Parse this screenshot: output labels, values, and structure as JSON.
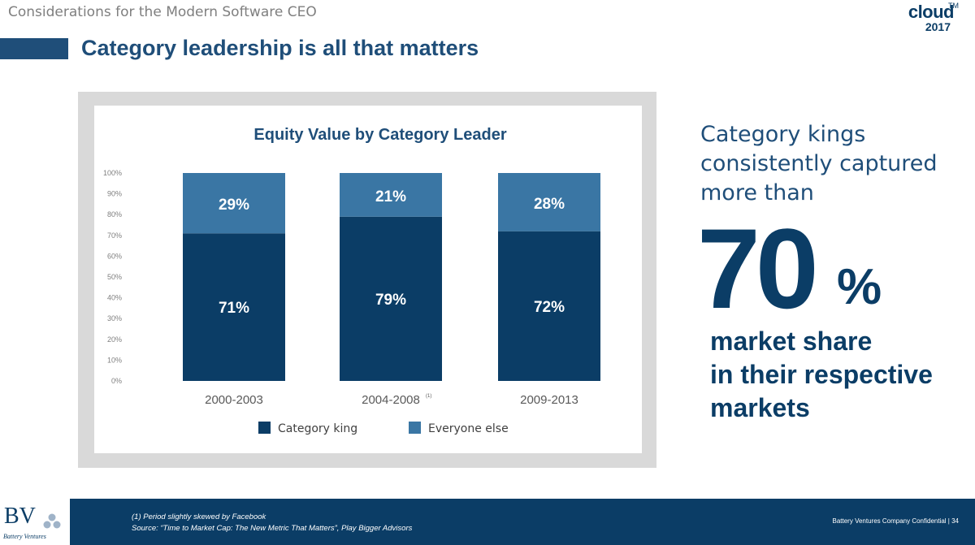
{
  "header": {
    "subtitle": "Considerations for the Modern Software CEO",
    "logo_word": "cloud",
    "logo_tm": "TM",
    "logo_year": "2017"
  },
  "slide": {
    "title": "Category leadership is all that matters"
  },
  "side_panel": {
    "intro_line1": "Category kings",
    "intro_line2": "consistently captured",
    "intro_line3": "more than",
    "big_number": "70",
    "big_percent": "%",
    "market_line1": "market share",
    "market_line2": "in their respective",
    "market_line3": "markets"
  },
  "colors": {
    "category_king": "#0b3d66",
    "everyone_else": "#3a76a4",
    "title": "#1f4e79"
  },
  "chart_data": {
    "type": "bar",
    "stacked": true,
    "title": "Equity Value by Category Leader",
    "categories": [
      "2000-2003",
      "2004-2008",
      "2009-2013"
    ],
    "category_superscripts": [
      "",
      "(1)",
      ""
    ],
    "series": [
      {
        "name": "Category king",
        "values": [
          71,
          79,
          72
        ],
        "labels": [
          "71%",
          "79%",
          "72%"
        ]
      },
      {
        "name": "Everyone else",
        "values": [
          29,
          21,
          28
        ],
        "labels": [
          "29%",
          "21%",
          "28%"
        ]
      }
    ],
    "y_ticks": [
      "0%",
      "10%",
      "20%",
      "30%",
      "40%",
      "50%",
      "60%",
      "70%",
      "80%",
      "90%",
      "100%"
    ],
    "ylim": [
      0,
      100
    ],
    "xlabel": "",
    "ylabel": "",
    "legend": "bottom"
  },
  "footer": {
    "bv_logo": "BV",
    "bv_sub": "Battery Ventures",
    "footnote_line1": "(1) Period slightly skewed by Facebook",
    "footnote_line2": "Source: “Time to Market Cap: The New Metric That Matters”, Play Bigger Advisors",
    "confidential": "Battery Ventures Company Confidential  |  34"
  }
}
